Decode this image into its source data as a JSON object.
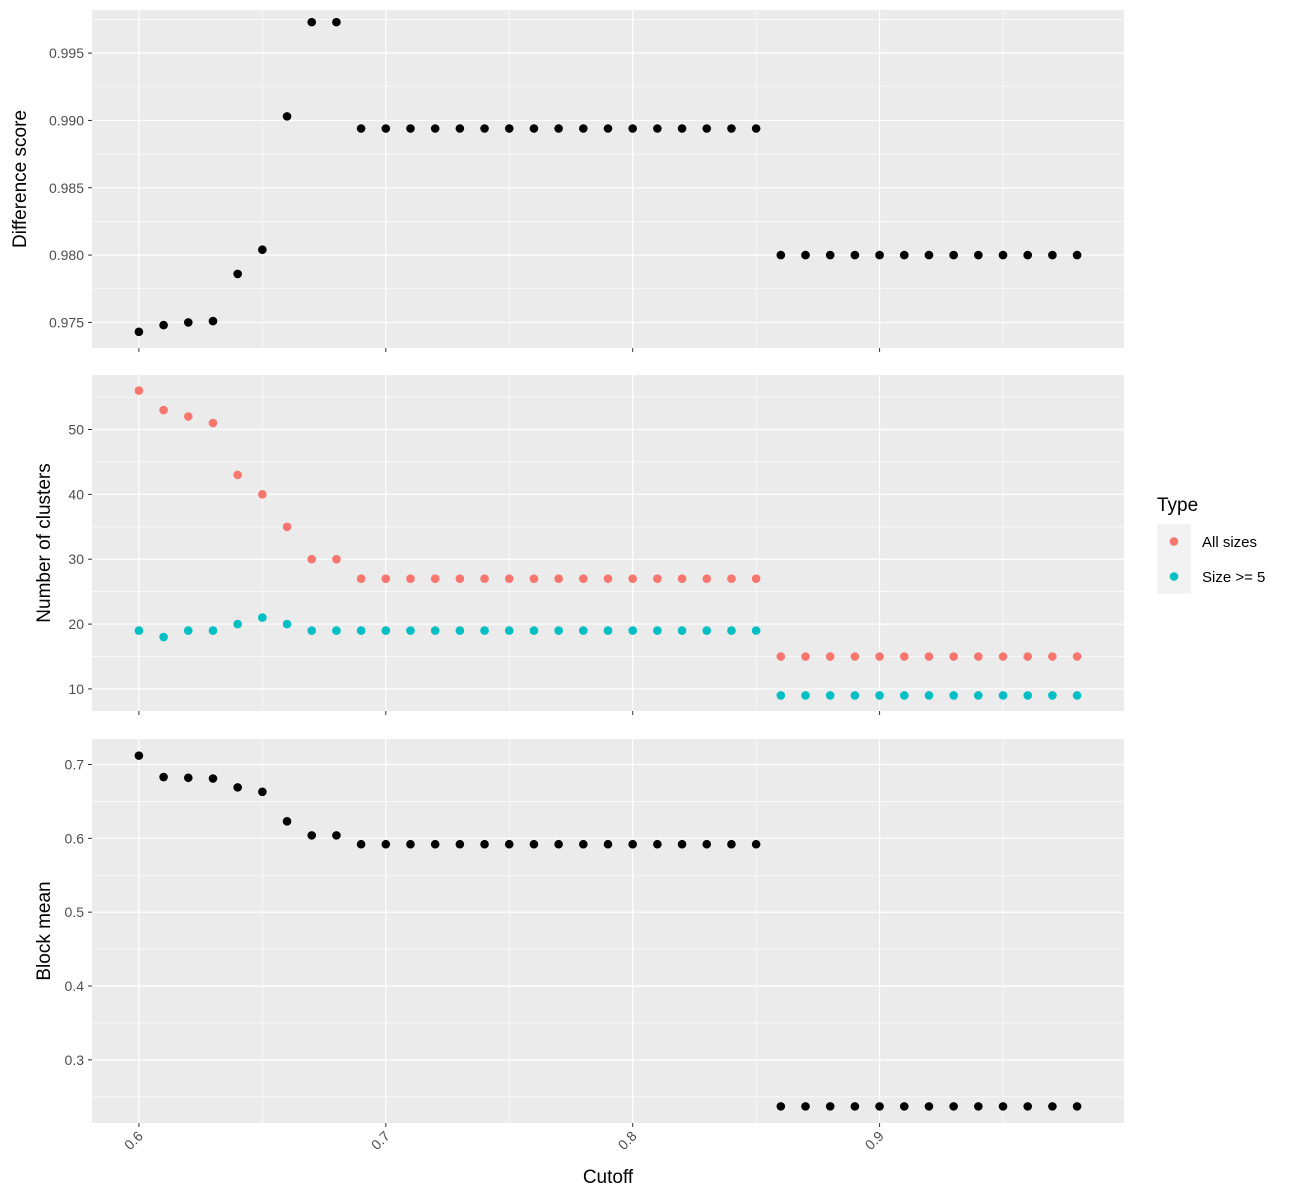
{
  "chart_data": {
    "type": "scatter",
    "xlabel": "Cutoff",
    "x_ticks": [
      "0.6",
      "0.7",
      "0.8",
      "0.9"
    ],
    "xlim": [
      0.581,
      0.999
    ],
    "x": [
      0.6,
      0.61,
      0.62,
      0.63,
      0.64,
      0.65,
      0.66,
      0.67,
      0.68,
      0.69,
      0.7,
      0.71,
      0.72,
      0.73,
      0.74,
      0.75,
      0.76,
      0.77,
      0.78,
      0.79,
      0.8,
      0.81,
      0.82,
      0.83,
      0.84,
      0.85,
      0.86,
      0.87,
      0.88,
      0.89,
      0.9,
      0.91,
      0.92,
      0.93,
      0.94,
      0.95,
      0.96,
      0.97,
      0.98
    ],
    "grid": true,
    "legend": {
      "title": "Type",
      "position": "right",
      "entries": [
        {
          "label": "All sizes",
          "color": "#F8766D"
        },
        {
          "label": "Size >= 5",
          "color": "#00BFC4"
        }
      ]
    },
    "panels": [
      {
        "ylabel": "Difference score",
        "ylim": [
          0.9731,
          0.9982
        ],
        "y_ticks": [
          "0.975",
          "0.980",
          "0.985",
          "0.990",
          "0.995"
        ],
        "series": [
          {
            "color": "#000000",
            "values": [
              0.9743,
              0.9748,
              0.975,
              0.9751,
              0.9786,
              0.9804,
              0.9903,
              0.9973,
              0.9973,
              0.9894,
              0.9894,
              0.9894,
              0.9894,
              0.9894,
              0.9894,
              0.9894,
              0.9894,
              0.9894,
              0.9894,
              0.9894,
              0.9894,
              0.9894,
              0.9894,
              0.9894,
              0.9894,
              0.9894,
              0.98,
              0.98,
              0.98,
              0.98,
              0.98,
              0.98,
              0.98,
              0.98,
              0.98,
              0.98,
              0.98,
              0.98,
              0.98
            ]
          }
        ]
      },
      {
        "ylabel": "Number of clusters",
        "ylim": [
          6.6,
          58.4
        ],
        "y_ticks": [
          "10",
          "20",
          "30",
          "40",
          "50"
        ],
        "series": [
          {
            "name": "All sizes",
            "color": "#F8766D",
            "values": [
              56,
              53,
              52,
              51,
              43,
              40,
              35,
              30,
              30,
              27,
              27,
              27,
              27,
              27,
              27,
              27,
              27,
              27,
              27,
              27,
              27,
              27,
              27,
              27,
              27,
              27,
              15,
              15,
              15,
              15,
              15,
              15,
              15,
              15,
              15,
              15,
              15,
              15,
              15
            ]
          },
          {
            "name": "Size >= 5",
            "color": "#00BFC4",
            "values": [
              19,
              18,
              19,
              19,
              20,
              21,
              20,
              19,
              19,
              19,
              19,
              19,
              19,
              19,
              19,
              19,
              19,
              19,
              19,
              19,
              19,
              19,
              19,
              19,
              19,
              19,
              9,
              9,
              9,
              9,
              9,
              9,
              9,
              9,
              9,
              9,
              9,
              9,
              9
            ]
          }
        ]
      },
      {
        "ylabel": "Block mean",
        "ylim": [
          0.2145,
          0.7345
        ],
        "y_ticks": [
          "0.3",
          "0.4",
          "0.5",
          "0.6",
          "0.7"
        ],
        "series": [
          {
            "color": "#000000",
            "values": [
              0.712,
              0.683,
              0.682,
              0.681,
              0.669,
              0.663,
              0.623,
              0.604,
              0.604,
              0.592,
              0.592,
              0.592,
              0.592,
              0.592,
              0.592,
              0.592,
              0.592,
              0.592,
              0.592,
              0.592,
              0.592,
              0.592,
              0.592,
              0.592,
              0.592,
              0.592,
              0.237,
              0.237,
              0.237,
              0.237,
              0.237,
              0.237,
              0.237,
              0.237,
              0.237,
              0.237,
              0.237,
              0.237,
              0.237
            ]
          }
        ]
      }
    ]
  }
}
